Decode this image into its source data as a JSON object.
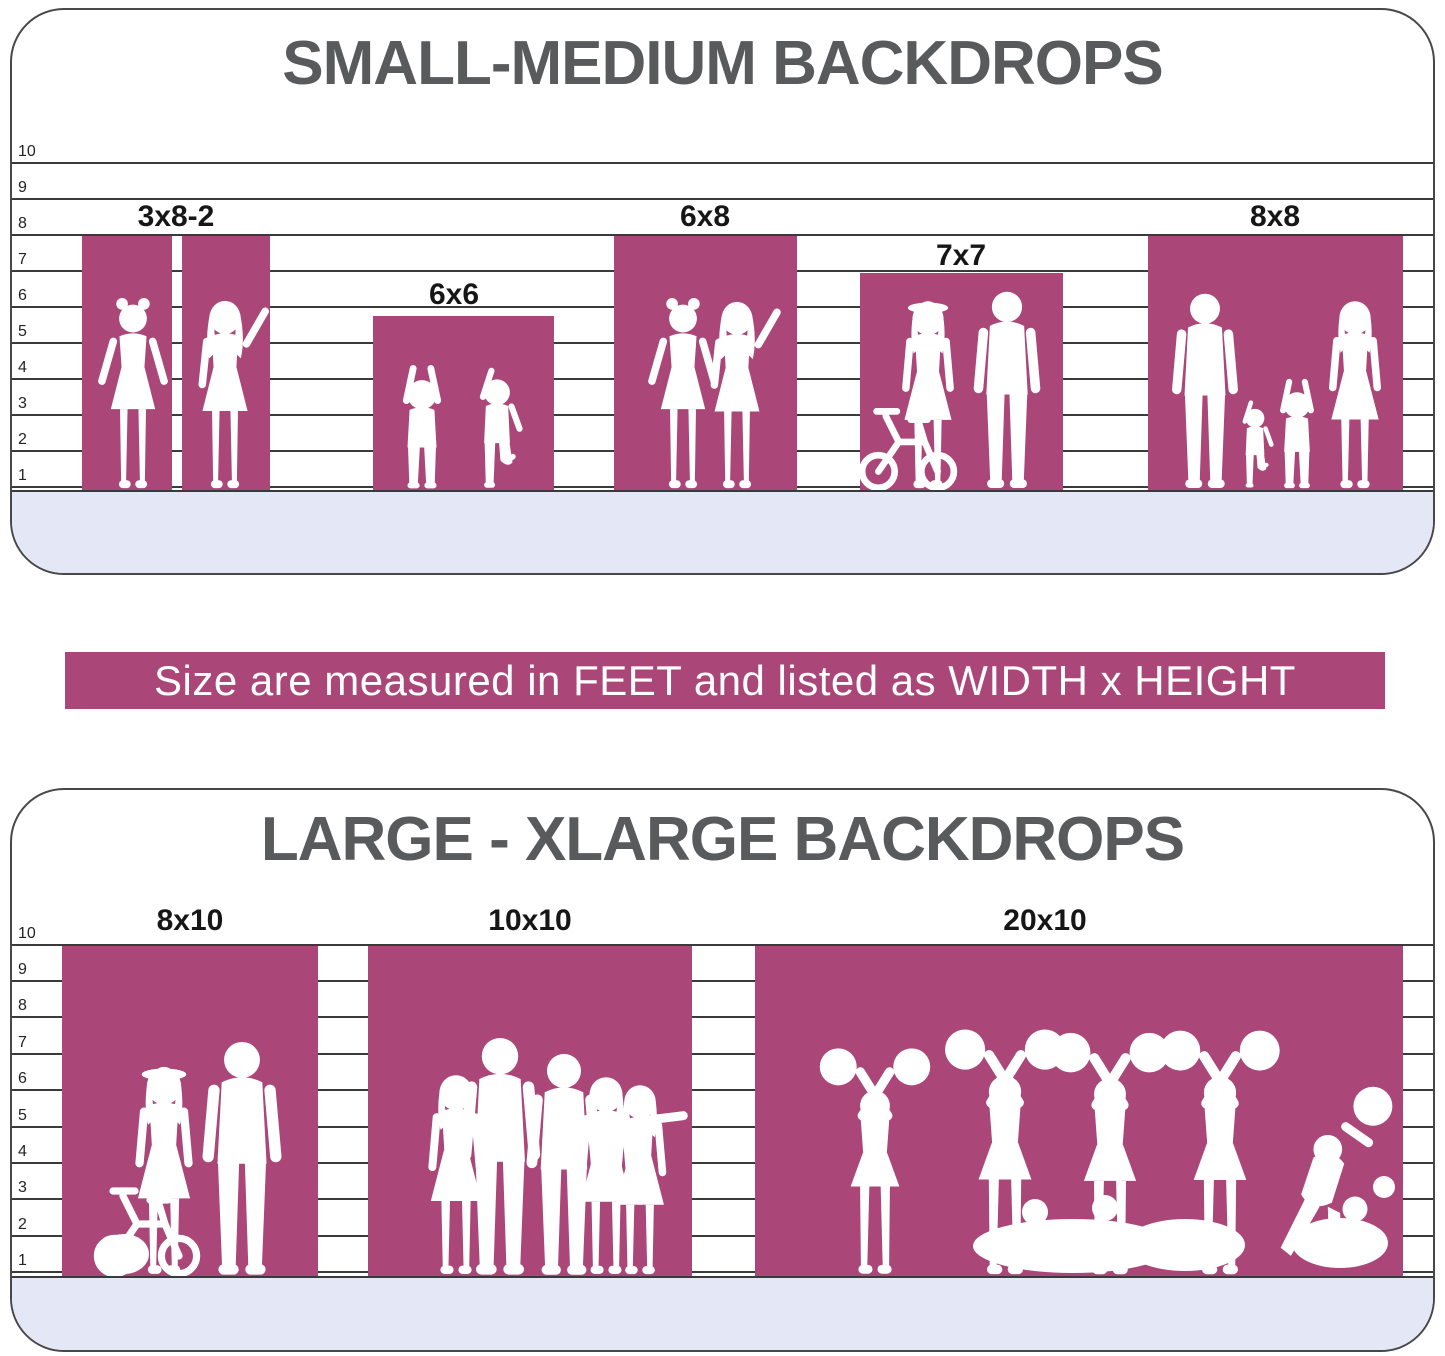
{
  "colors": {
    "backdrop_pink": "#ab4778",
    "floor_lavender": "#e4e8f6",
    "line_dark": "#3a3a3c",
    "panel_border": "#48484a",
    "title_gray": "#595a5c",
    "label_black": "#161616",
    "silhouette_white": "#ffffff"
  },
  "top_panel": {
    "title": "SMALL-MEDIUM BACKDROPS",
    "ruler_ticks": [
      "10",
      "9",
      "8",
      "7",
      "6",
      "5",
      "4",
      "3",
      "2",
      "1"
    ],
    "backdrops": [
      {
        "label": "3x8-2",
        "width_ft": 3,
        "height_ft": 8,
        "panel_count": 2,
        "silhouette": "two-girls-split-panels"
      },
      {
        "label": "6x6",
        "width_ft": 6,
        "height_ft": 6,
        "panel_count": 1,
        "silhouette": "two-toddlers"
      },
      {
        "label": "6x8",
        "width_ft": 6,
        "height_ft": 8,
        "panel_count": 1,
        "silhouette": "two-girls"
      },
      {
        "label": "7x7",
        "width_ft": 7,
        "height_ft": 7,
        "panel_count": 1,
        "silhouette": "woman-with-bike-and-man"
      },
      {
        "label": "8x8",
        "width_ft": 8,
        "height_ft": 8,
        "panel_count": 1,
        "silhouette": "family-of-four"
      }
    ]
  },
  "banner": {
    "text": "Size are measured in FEET and listed as WIDTH x HEIGHT"
  },
  "bottom_panel": {
    "title": "LARGE - XLARGE BACKDROPS",
    "ruler_ticks": [
      "10",
      "9",
      "8",
      "7",
      "6",
      "5",
      "4",
      "3",
      "2",
      "1"
    ],
    "backdrops": [
      {
        "label": "8x10",
        "width_ft": 8,
        "height_ft": 10,
        "panel_count": 1,
        "silhouette": "couple-with-stroller-bike"
      },
      {
        "label": "10x10",
        "width_ft": 10,
        "height_ft": 10,
        "panel_count": 1,
        "silhouette": "group-of-five"
      },
      {
        "label": "20x10",
        "width_ft": 20,
        "height_ft": 10,
        "panel_count": 1,
        "silhouette": "cheerleader-squad"
      }
    ]
  }
}
